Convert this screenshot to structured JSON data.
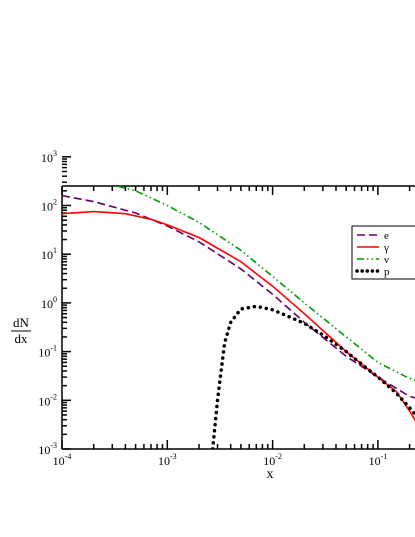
{
  "chart_data": {
    "type": "line",
    "title": "",
    "xlabel": "x",
    "ylabel_numerator": "dN",
    "ylabel_denominator": "dx",
    "x_scale": "log",
    "y_scale": "log",
    "xlim": [
      0.0001,
      0.28
    ],
    "ylim": [
      0.001,
      1000
    ],
    "grid": false,
    "legend_position": "top-right",
    "x_ticks": [
      {
        "value": 0.0001,
        "base": "10",
        "exp": "-4"
      },
      {
        "value": 0.001,
        "base": "10",
        "exp": "-3"
      },
      {
        "value": 0.01,
        "base": "10",
        "exp": "-2"
      },
      {
        "value": 0.1,
        "base": "10",
        "exp": "-1"
      }
    ],
    "y_ticks": [
      {
        "value": 0.001,
        "base": "10",
        "exp": "-3"
      },
      {
        "value": 0.01,
        "base": "10",
        "exp": "-2"
      },
      {
        "value": 0.1,
        "base": "10",
        "exp": "-1"
      },
      {
        "value": 1,
        "base": "10",
        "exp": "0"
      },
      {
        "value": 10,
        "base": "10",
        "exp": "1"
      },
      {
        "value": 100,
        "base": "10",
        "exp": "2"
      },
      {
        "value": 1000,
        "base": "10",
        "exp": "3"
      }
    ],
    "series": [
      {
        "name": "e",
        "color": "#660066",
        "dash": "dashed",
        "x": [
          0.0001,
          0.0002,
          0.0005,
          0.001,
          0.002,
          0.005,
          0.01,
          0.02,
          0.05,
          0.1,
          0.2,
          0.28
        ],
        "y": [
          160,
          120,
          70,
          38,
          18,
          5,
          1.5,
          0.4,
          0.08,
          0.03,
          0.012,
          0.01
        ]
      },
      {
        "name": "γ",
        "color": "#ff0000",
        "dash": "solid",
        "x": [
          0.0001,
          0.0002,
          0.0004,
          0.0007,
          0.001,
          0.002,
          0.005,
          0.01,
          0.02,
          0.05,
          0.1,
          0.15,
          0.2,
          0.28
        ],
        "y": [
          68,
          75,
          68,
          52,
          40,
          22,
          7,
          2.2,
          0.6,
          0.1,
          0.03,
          0.015,
          0.006,
          0.0018
        ]
      },
      {
        "name": "ν",
        "color": "#009900",
        "dash": "dash-dot-dot",
        "x": [
          0.0001,
          0.0002,
          0.0005,
          0.001,
          0.002,
          0.005,
          0.01,
          0.02,
          0.05,
          0.1,
          0.2,
          0.28
        ],
        "y": [
          380,
          330,
          200,
          100,
          45,
          12,
          3.5,
          1.0,
          0.2,
          0.06,
          0.028,
          0.022
        ]
      },
      {
        "name": "p",
        "color": "#000000",
        "dash": "dotted",
        "x": [
          0.0027,
          0.003,
          0.0035,
          0.004,
          0.005,
          0.007,
          0.01,
          0.015,
          0.02,
          0.03,
          0.05,
          0.07,
          0.1,
          0.15,
          0.2,
          0.28
        ],
        "y": [
          0.001,
          0.01,
          0.15,
          0.4,
          0.75,
          0.85,
          0.72,
          0.5,
          0.38,
          0.22,
          0.1,
          0.055,
          0.03,
          0.014,
          0.007,
          0.003
        ]
      }
    ]
  }
}
